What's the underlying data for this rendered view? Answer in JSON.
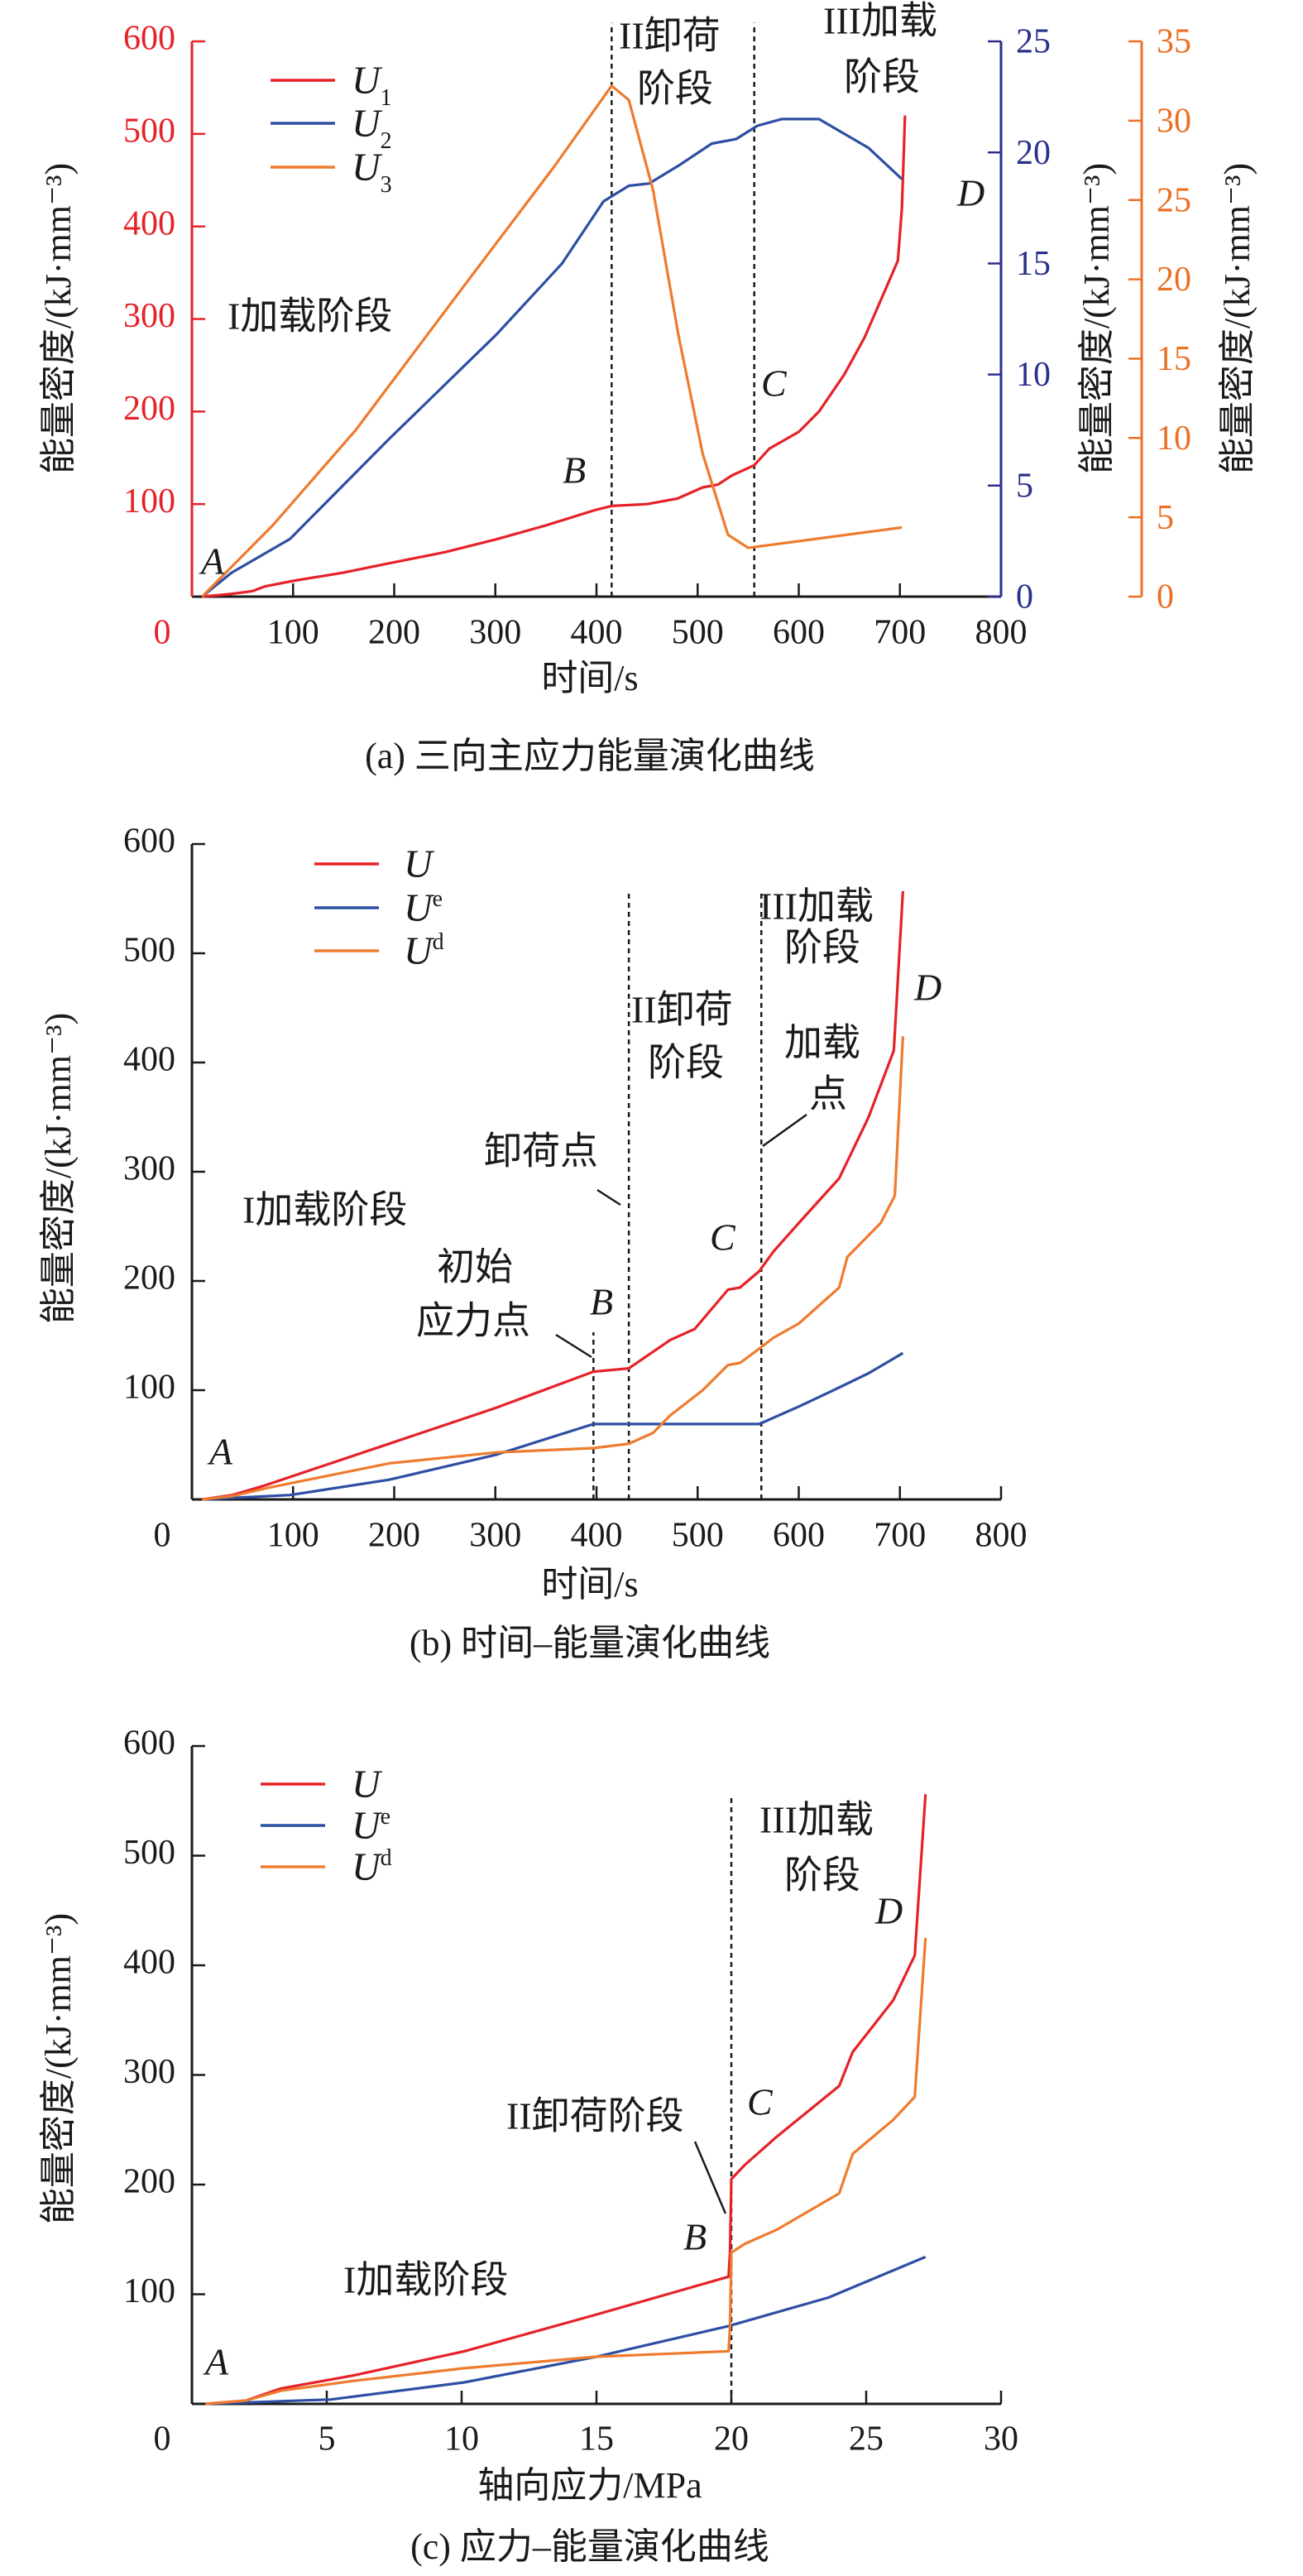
{
  "chart_data": [
    {
      "type": "line",
      "caption": "(a) 三向主应力能量演化曲线",
      "xlabel": "时间/s",
      "ylabel": "能量密度/(kJ·mm⁻³)",
      "xlim": [
        0,
        800
      ],
      "xticks": [
        0,
        100,
        200,
        300,
        400,
        500,
        600,
        700,
        800
      ],
      "axes": {
        "left": {
          "ylim": [
            0,
            600
          ],
          "ticks": [
            100,
            200,
            300,
            400,
            500,
            600
          ],
          "color": "#e52228",
          "label": "能量密度/(kJ·mm⁻³)"
        },
        "right1": {
          "ylim": [
            0,
            25
          ],
          "ticks": [
            0,
            5,
            10,
            15,
            20,
            25
          ],
          "color": "#2b2f8c",
          "label": "能量密度/(kJ·mm⁻³)"
        },
        "right2": {
          "ylim": [
            0,
            35
          ],
          "ticks": [
            0,
            5,
            10,
            15,
            20,
            25,
            30,
            35
          ],
          "color": "#ec6f24",
          "label": "能量密度/(kJ·mm⁻³)"
        }
      },
      "series": [
        {
          "name": "U",
          "sub": "1",
          "axis": "left",
          "color": "#e52228",
          "points": [
            [
              10,
              0
            ],
            [
              40,
              3
            ],
            [
              60,
              6
            ],
            [
              72,
              11
            ],
            [
              100,
              17
            ],
            [
              150,
              26
            ],
            [
              195,
              36
            ],
            [
              250,
              48
            ],
            [
              301,
              62
            ],
            [
              350,
              77
            ],
            [
              400,
              94
            ],
            [
              415,
              98
            ],
            [
              450,
              100
            ],
            [
              480,
              106
            ],
            [
              505,
              118
            ],
            [
              520,
              121
            ],
            [
              534,
              131
            ],
            [
              556,
              142
            ],
            [
              571,
              160
            ],
            [
              600,
              178
            ],
            [
              620,
              200
            ],
            [
              645,
              240
            ],
            [
              665,
              280
            ],
            [
              685,
              330
            ],
            [
              698,
              363
            ],
            [
              702,
              420
            ],
            [
              705,
              520
            ]
          ]
        },
        {
          "name": "U",
          "sub": "2",
          "axis": "right1",
          "color": "#2d4fa3",
          "points": [
            [
              10,
              0
            ],
            [
              39,
              1.07
            ],
            [
              97,
              2.6
            ],
            [
              195,
              7.1
            ],
            [
              301,
              11.8
            ],
            [
              366,
              15.0
            ],
            [
              407,
              17.8
            ],
            [
              432,
              18.5
            ],
            [
              452,
              18.6
            ],
            [
              481,
              19.4
            ],
            [
              514,
              20.4
            ],
            [
              538,
              20.6
            ],
            [
              559,
              21.2
            ],
            [
              583,
              21.5
            ],
            [
              620,
              21.5
            ],
            [
              669,
              20.2
            ],
            [
              702,
              18.8
            ]
          ]
        },
        {
          "name": "U",
          "sub": "3",
          "axis": "right2",
          "color": "#ee7b2e",
          "points": [
            [
              10,
              0
            ],
            [
              80,
              4.5
            ],
            [
              162,
              10.5
            ],
            [
              268,
              19.5
            ],
            [
              358,
              27.1
            ],
            [
              415,
              32.2
            ],
            [
              432,
              31.3
            ],
            [
              456,
              25.6
            ],
            [
              481,
              16.5
            ],
            [
              505,
              9.0
            ],
            [
              530,
              3.9
            ],
            [
              550,
              3.07
            ],
            [
              702,
              4.36
            ]
          ]
        }
      ],
      "vlines": [
        {
          "x": 415,
          "y": [
            0,
            620
          ]
        },
        {
          "x": 556,
          "y": [
            0,
            620
          ]
        }
      ],
      "annotations": [
        "I加载阶段",
        "II卸荷",
        "阶段",
        "III加载",
        "阶段"
      ],
      "points_labels": [
        "A",
        "B",
        "C",
        "D"
      ]
    },
    {
      "type": "line",
      "caption": "(b) 时间–能量演化曲线",
      "xlabel": "时间/s",
      "ylabel": "能量密度/(kJ·mm⁻³)",
      "xlim": [
        0,
        800
      ],
      "xticks": [
        0,
        100,
        200,
        300,
        400,
        500,
        600,
        700,
        800
      ],
      "axes": {
        "left": {
          "ylim": [
            0,
            600
          ],
          "ticks": [
            100,
            200,
            300,
            400,
            500,
            600
          ],
          "color": "#1a1a1a",
          "label": "能量密度/(kJ·mm⁻³)"
        }
      },
      "series": [
        {
          "name": "U",
          "sup": "",
          "axis": "left",
          "color": "#e52228",
          "points": [
            [
              10,
              0
            ],
            [
              40,
              4
            ],
            [
              72,
              12.8
            ],
            [
              195,
              51
            ],
            [
              301,
              84
            ],
            [
              397,
              117
            ],
            [
              432,
              120
            ],
            [
              473,
              146
            ],
            [
              497,
              156
            ],
            [
              530,
              192
            ],
            [
              542,
              194
            ],
            [
              561,
              209
            ],
            [
              575,
              227
            ],
            [
              600,
              253
            ],
            [
              640,
              294
            ],
            [
              669,
              350
            ],
            [
              694,
              411
            ],
            [
              703,
              557
            ]
          ]
        },
        {
          "name": "U",
          "sup": "e",
          "axis": "left",
          "color": "#2d4fa3",
          "points": [
            [
              10,
              0
            ],
            [
              97,
              4
            ],
            [
              195,
              18
            ],
            [
              301,
              41
            ],
            [
              397,
              69
            ],
            [
              561,
              69
            ],
            [
              600,
              85
            ],
            [
              630,
              98
            ],
            [
              670,
              116
            ],
            [
              703,
              134
            ]
          ]
        },
        {
          "name": "U",
          "sup": "d",
          "axis": "left",
          "color": "#ee7b2e",
          "points": [
            [
              10,
              0
            ],
            [
              40,
              3
            ],
            [
              72,
              10
            ],
            [
              195,
              33
            ],
            [
              301,
              43
            ],
            [
              397,
              47
            ],
            [
              432,
              51
            ],
            [
              456,
              61
            ],
            [
              473,
              77
            ],
            [
              505,
              100
            ],
            [
              530,
              123
            ],
            [
              542,
              125
            ],
            [
              561,
              138
            ],
            [
              575,
              148
            ],
            [
              600,
              161
            ],
            [
              640,
              194
            ],
            [
              648,
              222
            ],
            [
              681,
              253
            ],
            [
              695,
              278
            ],
            [
              703,
              424
            ]
          ]
        }
      ],
      "vlines": [
        {
          "x": 397,
          "y": [
            0,
            153
          ]
        },
        {
          "x": 432,
          "y": [
            0,
            556
          ]
        },
        {
          "x": 563,
          "y": [
            0,
            556
          ]
        }
      ],
      "annotations": [
        "III加载",
        "阶段",
        "II卸荷",
        "阶段",
        "加载",
        "点",
        "卸荷点",
        "I加载阶段",
        "初始",
        "应力点"
      ],
      "points_labels": [
        "A",
        "B",
        "C",
        "D"
      ]
    },
    {
      "type": "line",
      "caption": "(c) 应力–能量演化曲线",
      "xlabel": "轴向应力/MPa",
      "ylabel": "能量密度/(kJ·mm⁻³)",
      "xlim": [
        0,
        30
      ],
      "xticks": [
        0,
        5,
        10,
        15,
        20,
        25,
        30
      ],
      "axes": {
        "left": {
          "ylim": [
            0,
            600
          ],
          "ticks": [
            100,
            200,
            300,
            400,
            500,
            600
          ],
          "color": "#1a1a1a",
          "label": "能量密度/(kJ·mm⁻³)"
        }
      },
      "series": [
        {
          "name": "U",
          "sup": "",
          "axis": "left",
          "color": "#e52228",
          "points": [
            [
              0.5,
              0
            ],
            [
              2,
              3
            ],
            [
              3.3,
              14
            ],
            [
              6,
              26
            ],
            [
              10.1,
              48
            ],
            [
              15,
              81.5
            ],
            [
              19.9,
              116
            ],
            [
              19.95,
              138
            ],
            [
              20,
              205
            ],
            [
              20.5,
              218
            ],
            [
              21.7,
              244
            ],
            [
              24,
              290
            ],
            [
              24.5,
              321
            ],
            [
              26,
              368
            ],
            [
              26.8,
              409
            ],
            [
              27.2,
              556
            ]
          ]
        },
        {
          "name": "U",
          "sup": "e",
          "axis": "left",
          "color": "#2d4fa3",
          "points": [
            [
              0.5,
              0
            ],
            [
              5.15,
              4
            ],
            [
              10.1,
              19.6
            ],
            [
              15,
              43
            ],
            [
              19.9,
              71
            ],
            [
              23.6,
              97
            ],
            [
              27.2,
              134
            ]
          ]
        },
        {
          "name": "U",
          "sup": "d",
          "axis": "left",
          "color": "#ee7b2e",
          "points": [
            [
              0.5,
              0
            ],
            [
              2,
              3
            ],
            [
              3.3,
              12
            ],
            [
              6,
              21
            ],
            [
              10.1,
              32.5
            ],
            [
              15,
              43
            ],
            [
              19.9,
              48
            ],
            [
              19.95,
              70
            ],
            [
              20,
              138
            ],
            [
              20.5,
              146
            ],
            [
              21.7,
              159
            ],
            [
              24,
              192
            ],
            [
              24.5,
              228
            ],
            [
              26,
              259
            ],
            [
              26.8,
              280
            ],
            [
              27.2,
              425
            ]
          ]
        }
      ],
      "vlines": [
        {
          "x": 20,
          "y": [
            0,
            556
          ]
        }
      ],
      "annotations": [
        "III加载",
        "阶段",
        "II卸荷阶段",
        "I加载阶段"
      ],
      "points_labels": [
        "A",
        "B",
        "C",
        "D"
      ]
    }
  ]
}
